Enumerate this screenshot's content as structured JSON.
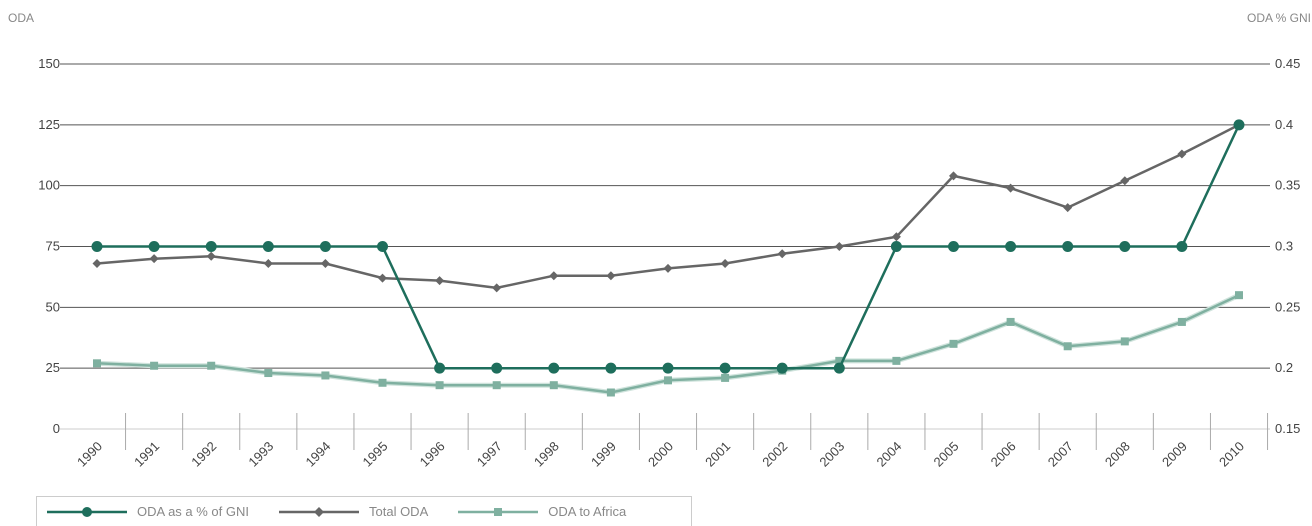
{
  "chart_data": {
    "type": "line",
    "left_axis_label": "ODA",
    "right_axis_label": "ODA % GNI",
    "categories": [
      "1990",
      "1991",
      "1992",
      "1993",
      "1994",
      "1995",
      "1996",
      "1997",
      "1998",
      "1999",
      "2000",
      "2001",
      "2002",
      "2003",
      "2004",
      "2005",
      "2006",
      "2007",
      "2008",
      "2009",
      "2010"
    ],
    "left_axis": {
      "min": 0,
      "max": 150,
      "ticks": [
        "0",
        "25",
        "50",
        "75",
        "100",
        "125",
        "150"
      ]
    },
    "right_axis": {
      "min": 0.15,
      "max": 0.45,
      "ticks": [
        "0.15",
        "0.2",
        "0.25",
        "0.3",
        "0.35",
        "0.4",
        "0.45"
      ]
    },
    "grid": true,
    "legend_position": "bottom-left",
    "series": [
      {
        "name": "ODA as a % of GNI",
        "axis": "right",
        "color": "#1e6e5c",
        "marker": "circle",
        "values": [
          0.3,
          0.3,
          0.3,
          0.3,
          0.3,
          0.3,
          0.2,
          0.2,
          0.2,
          0.2,
          0.2,
          0.2,
          0.2,
          0.2,
          0.3,
          0.3,
          0.3,
          0.3,
          0.3,
          0.3,
          0.4
        ]
      },
      {
        "name": "Total ODA",
        "axis": "left",
        "color": "#666666",
        "marker": "diamond",
        "values": [
          68,
          70,
          71,
          68,
          68,
          62,
          61,
          58,
          63,
          63,
          66,
          68,
          72,
          75,
          79,
          104,
          99,
          91,
          102,
          113,
          125
        ]
      },
      {
        "name": "ODA to Africa",
        "axis": "left",
        "color": "#7fb0a0",
        "marker": "square",
        "values": [
          27,
          26,
          26,
          23,
          22,
          19,
          18,
          18,
          18,
          15,
          20,
          21,
          24,
          28,
          28,
          35,
          44,
          34,
          36,
          44,
          55
        ]
      }
    ]
  }
}
